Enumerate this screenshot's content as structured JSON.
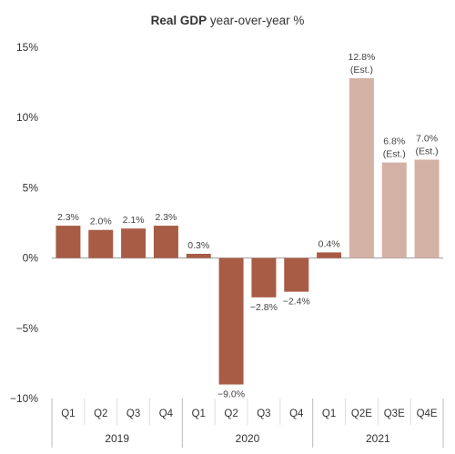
{
  "chart_data": {
    "type": "bar",
    "title_bold": "Real GDP",
    "title_rest": " year-over-year %",
    "ylim": [
      -10,
      15
    ],
    "yticks": [
      {
        "value": 15,
        "label": "15%"
      },
      {
        "value": 10,
        "label": "10%"
      },
      {
        "value": 5,
        "label": "5%"
      },
      {
        "value": 0,
        "label": "0%"
      },
      {
        "value": -5,
        "label": "−5%"
      },
      {
        "value": -10,
        "label": "−10%"
      }
    ],
    "categories": [
      "Q1",
      "Q2",
      "Q3",
      "Q4",
      "Q1",
      "Q2",
      "Q3",
      "Q4",
      "Q1",
      "Q2E",
      "Q3E",
      "Q4E"
    ],
    "groups": [
      {
        "label": "2019",
        "count": 4
      },
      {
        "label": "2020",
        "count": 4
      },
      {
        "label": "2021",
        "count": 4
      }
    ],
    "values": [
      2.3,
      2.0,
      2.1,
      2.3,
      0.3,
      -9.0,
      -2.8,
      -2.4,
      0.4,
      12.8,
      6.8,
      7.0
    ],
    "value_labels": [
      "2.3%",
      "2.0%",
      "2.1%",
      "2.3%",
      "0.3%",
      "−9.0%",
      "−2.8%",
      "−2.4%",
      "0.4%",
      "12.8%",
      "6.8%",
      "7.0%"
    ],
    "estimated": [
      false,
      false,
      false,
      false,
      false,
      false,
      false,
      false,
      false,
      true,
      true,
      true
    ],
    "estimate_note": "(Est.)",
    "colors": {
      "actual": "#a85c45",
      "estimate": "#d4b1a5",
      "axis": "#999999",
      "text": "#333333"
    }
  }
}
